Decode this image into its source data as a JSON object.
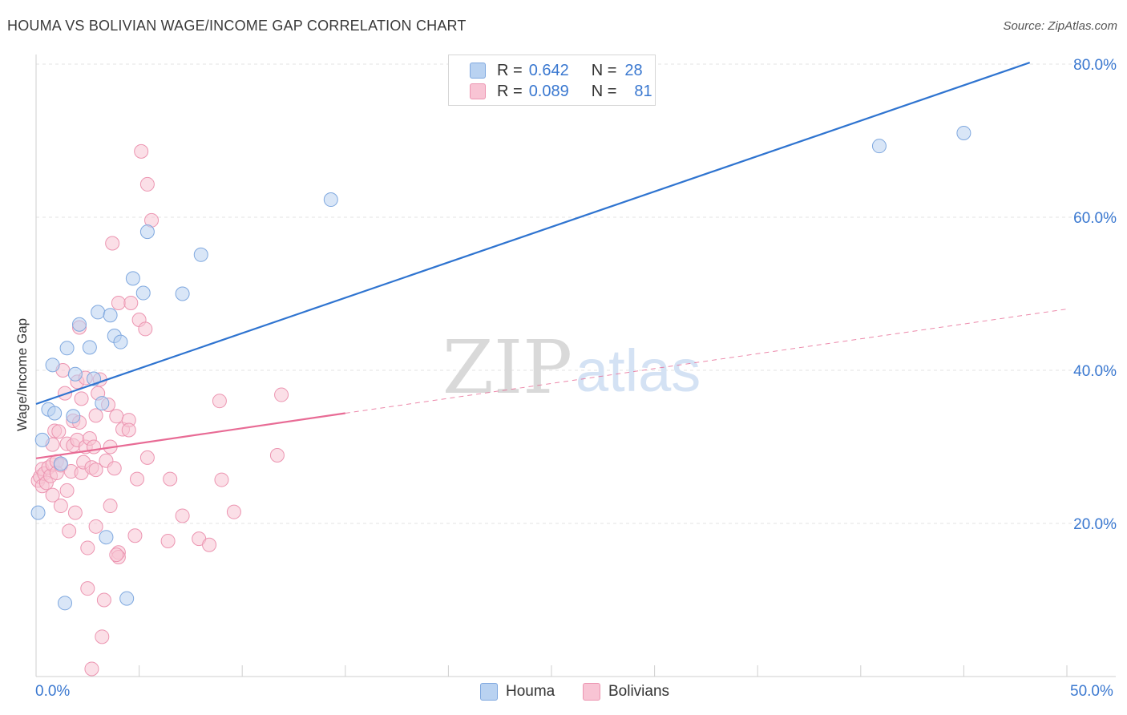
{
  "title": "HOUMA VS BOLIVIAN WAGE/INCOME GAP CORRELATION CHART",
  "source": "Source: ZipAtlas.com",
  "watermark": {
    "zip": "ZIP",
    "atlas": "atlas"
  },
  "legend": {
    "items": [
      {
        "name": "Houma",
        "r_label": "R =",
        "r_value": "0.642",
        "n_label": "N =",
        "n_value": "28",
        "fill": "#b9d2f1",
        "stroke": "#7fa8df"
      },
      {
        "name": "Bolivians",
        "r_label": "R =",
        "r_value": "0.089",
        "n_label": "N =",
        "n_value": "81",
        "fill": "#f8c4d4",
        "stroke": "#ec95b1"
      }
    ]
  },
  "axes": {
    "x_min_label": "0.0%",
    "x_max_label": "50.0%",
    "y_tick_labels": [
      "20.0%",
      "40.0%",
      "60.0%",
      "80.0%"
    ]
  },
  "colors": {
    "houma_line": "#2f74d0",
    "bolivian_line": "#e86b95",
    "tick_text": "#3a78d0",
    "grid": "#e3e3e3"
  },
  "chart_data": {
    "type": "scatter",
    "title": "HOUMA VS BOLIVIAN WAGE/INCOME GAP CORRELATION CHART",
    "xlabel": "",
    "ylabel": "Wage/Income Gap",
    "xlim": [
      0,
      50
    ],
    "ylim": [
      0,
      82
    ],
    "y_ticks": [
      20,
      40,
      60,
      80
    ],
    "series": [
      {
        "name": "Houma",
        "r": 0.642,
        "n": 28,
        "trend": {
          "x0": 0,
          "y0": 35.6,
          "x1": 48.2,
          "y1": 80.2,
          "style": "solid"
        },
        "points": [
          [
            0.1,
            21.4
          ],
          [
            0.3,
            30.9
          ],
          [
            0.6,
            34.9
          ],
          [
            0.8,
            40.7
          ],
          [
            0.9,
            34.4
          ],
          [
            1.2,
            27.8
          ],
          [
            1.5,
            42.9
          ],
          [
            1.4,
            9.6
          ],
          [
            1.8,
            34.0
          ],
          [
            1.9,
            39.5
          ],
          [
            2.1,
            46.0
          ],
          [
            2.6,
            43.0
          ],
          [
            2.8,
            38.9
          ],
          [
            3.0,
            47.6
          ],
          [
            3.2,
            35.7
          ],
          [
            3.4,
            18.2
          ],
          [
            3.6,
            47.2
          ],
          [
            3.8,
            44.5
          ],
          [
            4.1,
            43.7
          ],
          [
            4.4,
            10.2
          ],
          [
            4.7,
            52.0
          ],
          [
            5.2,
            50.1
          ],
          [
            5.4,
            58.1
          ],
          [
            7.1,
            50.0
          ],
          [
            8.0,
            55.1
          ],
          [
            14.3,
            62.3
          ],
          [
            40.9,
            69.3
          ],
          [
            45.0,
            71.0
          ]
        ]
      },
      {
        "name": "Bolivians",
        "r": 0.089,
        "n": 81,
        "trend": {
          "x0": 0,
          "y0": 28.5,
          "x1": 15.0,
          "y1": 34.4,
          "style": "solid",
          "extend_to_x": 50,
          "extend_to_y": 48.0,
          "extend_style": "dashed"
        },
        "points": [
          [
            0.1,
            25.6
          ],
          [
            0.2,
            26.1
          ],
          [
            0.3,
            24.9
          ],
          [
            0.3,
            27.1
          ],
          [
            0.4,
            26.5
          ],
          [
            0.5,
            25.3
          ],
          [
            0.6,
            27.3
          ],
          [
            0.7,
            26.2
          ],
          [
            0.8,
            27.7
          ],
          [
            0.8,
            30.3
          ],
          [
            0.8,
            23.7
          ],
          [
            0.9,
            32.1
          ],
          [
            1.0,
            28.1
          ],
          [
            1.0,
            26.6
          ],
          [
            1.1,
            32.0
          ],
          [
            1.2,
            22.3
          ],
          [
            1.2,
            27.6
          ],
          [
            1.3,
            40.0
          ],
          [
            1.4,
            37.0
          ],
          [
            1.5,
            30.4
          ],
          [
            1.5,
            24.3
          ],
          [
            1.6,
            19.0
          ],
          [
            1.7,
            26.8
          ],
          [
            1.8,
            33.4
          ],
          [
            1.8,
            30.2
          ],
          [
            1.9,
            21.4
          ],
          [
            2.0,
            30.9
          ],
          [
            2.0,
            38.5
          ],
          [
            2.1,
            45.6
          ],
          [
            2.1,
            33.2
          ],
          [
            2.2,
            26.6
          ],
          [
            2.3,
            28.0
          ],
          [
            2.4,
            39.0
          ],
          [
            2.4,
            30.0
          ],
          [
            2.5,
            11.5
          ],
          [
            2.5,
            16.8
          ],
          [
            2.6,
            31.1
          ],
          [
            2.7,
            27.3
          ],
          [
            2.8,
            30.0
          ],
          [
            2.9,
            34.1
          ],
          [
            2.9,
            27.0
          ],
          [
            2.9,
            19.6
          ],
          [
            3.0,
            37.0
          ],
          [
            3.1,
            38.8
          ],
          [
            3.2,
            5.2
          ],
          [
            3.3,
            10.0
          ],
          [
            3.4,
            28.2
          ],
          [
            3.5,
            35.5
          ],
          [
            3.6,
            22.3
          ],
          [
            3.6,
            30.0
          ],
          [
            3.7,
            56.6
          ],
          [
            3.8,
            27.2
          ],
          [
            3.9,
            34.0
          ],
          [
            4.0,
            48.8
          ],
          [
            4.0,
            16.2
          ],
          [
            4.0,
            15.6
          ],
          [
            4.2,
            32.3
          ],
          [
            4.5,
            33.5
          ],
          [
            4.5,
            32.2
          ],
          [
            4.6,
            48.8
          ],
          [
            4.8,
            18.4
          ],
          [
            4.9,
            25.8
          ],
          [
            5.0,
            46.6
          ],
          [
            5.1,
            68.6
          ],
          [
            5.3,
            45.4
          ],
          [
            5.4,
            64.3
          ],
          [
            5.4,
            28.6
          ],
          [
            5.6,
            59.6
          ],
          [
            6.4,
            17.7
          ],
          [
            6.5,
            25.8
          ],
          [
            7.1,
            21.0
          ],
          [
            7.9,
            18.0
          ],
          [
            8.4,
            17.2
          ],
          [
            8.9,
            36.0
          ],
          [
            9.0,
            25.7
          ],
          [
            9.6,
            21.5
          ],
          [
            11.7,
            28.9
          ],
          [
            11.9,
            36.8
          ],
          [
            2.7,
            1.0
          ],
          [
            3.9,
            15.9
          ],
          [
            2.2,
            36.3
          ]
        ]
      }
    ]
  }
}
